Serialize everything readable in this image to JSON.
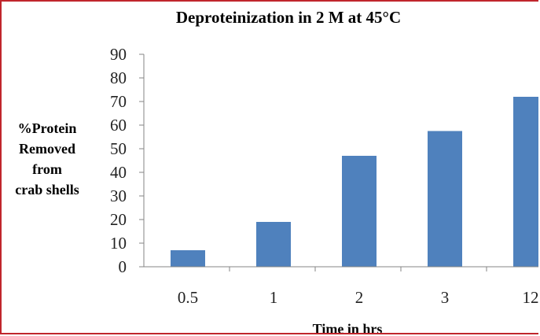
{
  "chart_data": {
    "type": "bar",
    "title": "Deproteinization in 2 M at 45°C",
    "xlabel": "Time in hrs",
    "ylabel_lines": [
      "%Protein",
      "Removed",
      "from",
      "crab shells"
    ],
    "categories": [
      "0.5",
      "1",
      "2",
      "3",
      "12"
    ],
    "series": [
      {
        "values": [
          7,
          19,
          47,
          57.5,
          72
        ]
      }
    ],
    "ylim": [
      0,
      90
    ],
    "yticks": [
      "0",
      "10",
      "20",
      "30",
      "40",
      "50",
      "60",
      "70",
      "80",
      "90"
    ],
    "grid": false,
    "legend": "none",
    "bar_color": "#4f81bd",
    "frame_color": "#c0262c"
  }
}
